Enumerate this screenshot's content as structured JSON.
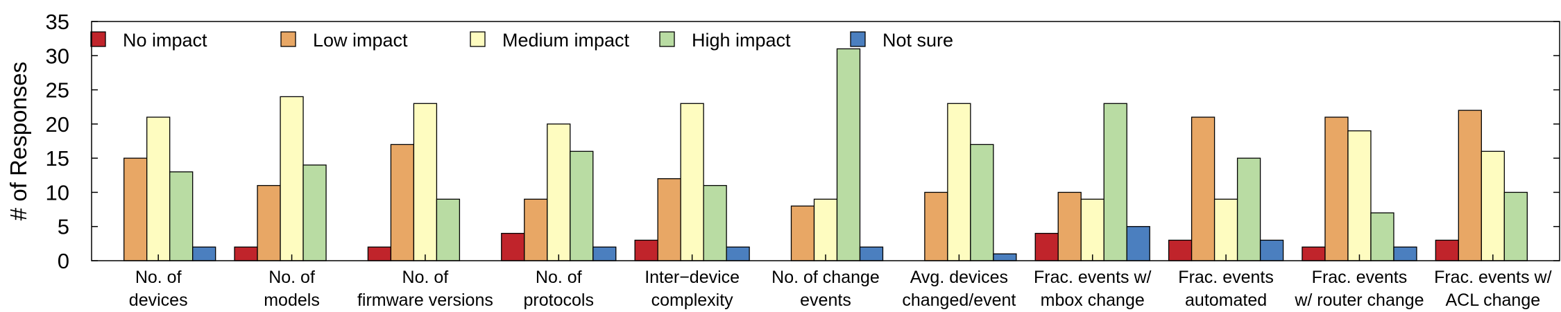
{
  "chart_data": {
    "type": "bar",
    "title": "",
    "xlabel": "",
    "ylabel": "# of Responses",
    "ylim": [
      0,
      35
    ],
    "yticks": [
      0,
      5,
      10,
      15,
      20,
      25,
      30,
      35
    ],
    "grid": false,
    "legend_position": "top-left",
    "categories": [
      [
        "No. of",
        "devices"
      ],
      [
        "No. of",
        "models"
      ],
      [
        "No. of",
        "firmware versions"
      ],
      [
        "No. of",
        "protocols"
      ],
      [
        "Inter−device",
        "complexity"
      ],
      [
        "No. of change",
        "events"
      ],
      [
        "Avg. devices",
        "changed/event"
      ],
      [
        "Frac. events w/",
        "mbox change"
      ],
      [
        "Frac. events",
        "automated"
      ],
      [
        "Frac. events",
        "w/ router change"
      ],
      [
        "Frac. events w/",
        "ACL change"
      ]
    ],
    "series": [
      {
        "name": "No impact",
        "color": "#c0242b",
        "values": [
          0,
          2,
          2,
          4,
          3,
          0,
          0,
          4,
          3,
          2,
          3
        ]
      },
      {
        "name": "Low impact",
        "color": "#e8a765",
        "values": [
          15,
          11,
          17,
          9,
          12,
          8,
          10,
          10,
          21,
          21,
          22
        ]
      },
      {
        "name": "Medium impact",
        "color": "#fefcc0",
        "values": [
          21,
          24,
          23,
          20,
          23,
          9,
          23,
          9,
          9,
          19,
          16
        ]
      },
      {
        "name": "High impact",
        "color": "#b9dca3",
        "values": [
          13,
          14,
          9,
          16,
          11,
          31,
          17,
          23,
          15,
          7,
          10
        ]
      },
      {
        "name": "Not sure",
        "color": "#4b7fbf",
        "values": [
          2,
          0,
          0,
          2,
          2,
          2,
          1,
          5,
          3,
          2,
          0
        ]
      }
    ]
  }
}
